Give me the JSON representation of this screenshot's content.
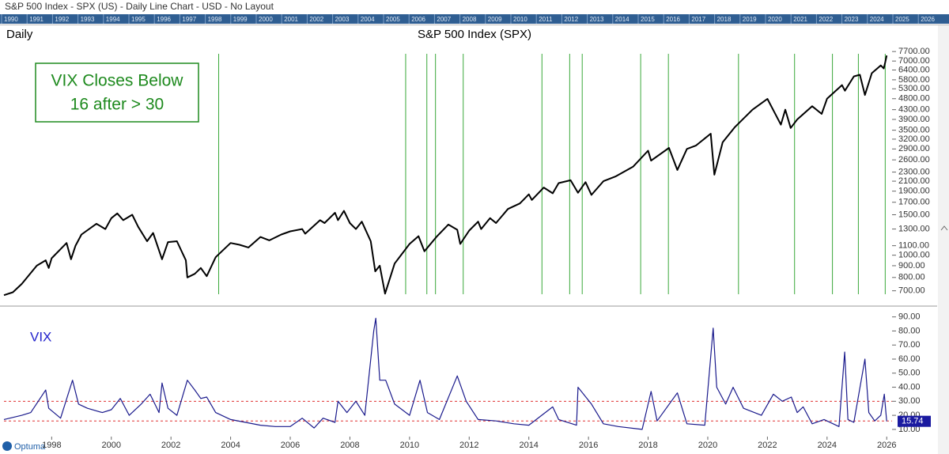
{
  "window_title": "S&P 500 Index - SPX (US) - Daily Line Chart - USD - No Layout",
  "timeline_years": [
    "1990",
    "1991",
    "1992",
    "1993",
    "1994",
    "1995",
    "1996",
    "1997",
    "1998",
    "1999",
    "2000",
    "2001",
    "2002",
    "2003",
    "2004",
    "2005",
    "2006",
    "2007",
    "2008",
    "2009",
    "2010",
    "2011",
    "2012",
    "2013",
    "2014",
    "2015",
    "2016",
    "2017",
    "2018",
    "2019",
    "2020",
    "2021",
    "2022",
    "2023",
    "2024",
    "2025",
    "2026"
  ],
  "footer": {
    "logo": "Optuma"
  },
  "chart_data": [
    {
      "type": "line",
      "title": "S&P 500 Index (SPX)",
      "label": "Daily",
      "log_scale": true,
      "color": "#000000",
      "annotation": [
        "VIX Closes Below",
        "16 after > 30"
      ],
      "annotation_color": "#1e8a1e",
      "signals": [
        2003.6,
        2009.87,
        2010.58,
        2010.87,
        2011.8,
        2014.44,
        2015.37,
        2015.79,
        2017.75,
        2018.68,
        2021.03,
        2022.91,
        2024.18,
        2025.05,
        2025.95
      ],
      "signal_color": "#3aa83a",
      "x": [
        1996.4,
        1996.7,
        1997.0,
        1997.5,
        1997.8,
        1997.9,
        1998.0,
        1998.5,
        1998.65,
        1998.8,
        1999.0,
        1999.5,
        1999.8,
        2000.0,
        2000.2,
        2000.4,
        2000.7,
        2000.9,
        2001.2,
        2001.4,
        2001.7,
        2001.9,
        2002.2,
        2002.5,
        2002.55,
        2002.8,
        2003.0,
        2003.2,
        2003.5,
        2004.0,
        2004.3,
        2004.6,
        2005.0,
        2005.3,
        2005.7,
        2006.0,
        2006.4,
        2006.5,
        2007.0,
        2007.15,
        2007.5,
        2007.6,
        2007.8,
        2008.0,
        2008.2,
        2008.4,
        2008.7,
        2008.85,
        2009.0,
        2009.18,
        2009.5,
        2010.0,
        2010.3,
        2010.5,
        2010.9,
        2011.3,
        2011.6,
        2011.7,
        2012.0,
        2012.3,
        2012.4,
        2012.7,
        2012.9,
        2013.3,
        2013.7,
        2014.0,
        2014.1,
        2014.5,
        2014.8,
        2015.0,
        2015.4,
        2015.65,
        2015.9,
        2016.1,
        2016.5,
        2016.9,
        2017.5,
        2018.0,
        2018.1,
        2018.7,
        2018.98,
        2019.3,
        2019.6,
        2020.1,
        2020.22,
        2020.5,
        2020.9,
        2021.5,
        2022.0,
        2022.45,
        2022.6,
        2022.78,
        2023.0,
        2023.5,
        2023.82,
        2024.0,
        2024.5,
        2024.6,
        2024.9,
        2025.1,
        2025.27,
        2025.5,
        2025.8,
        2025.9,
        2025.95,
        2026.0
      ],
      "values": [
        670,
        690,
        750,
        900,
        950,
        880,
        970,
        1130,
        960,
        1100,
        1230,
        1370,
        1300,
        1450,
        1520,
        1420,
        1500,
        1330,
        1150,
        1250,
        960,
        1140,
        1150,
        950,
        800,
        830,
        880,
        810,
        980,
        1130,
        1110,
        1080,
        1200,
        1160,
        1230,
        1270,
        1300,
        1240,
        1420,
        1380,
        1530,
        1420,
        1560,
        1380,
        1300,
        1400,
        1150,
        850,
        900,
        680,
        920,
        1120,
        1210,
        1040,
        1200,
        1360,
        1290,
        1120,
        1280,
        1400,
        1300,
        1450,
        1380,
        1590,
        1680,
        1840,
        1740,
        1970,
        1860,
        2060,
        2120,
        1870,
        2080,
        1830,
        2100,
        2200,
        2430,
        2850,
        2580,
        2930,
        2350,
        2900,
        3000,
        3380,
        2240,
        3100,
        3600,
        4300,
        4790,
        3700,
        4300,
        3580,
        3900,
        4450,
        4120,
        4800,
        5500,
        5200,
        6000,
        6100,
        4980,
        6200,
        6700,
        6500,
        6900,
        7400
      ],
      "ylim": [
        610,
        8150
      ],
      "yticks": [
        {
          "value": 700,
          "label": "700.00"
        },
        {
          "value": 800,
          "label": "800.00"
        },
        {
          "value": 900,
          "label": "900.00"
        },
        {
          "value": 1000,
          "label": "1000.00"
        },
        {
          "value": 1100,
          "label": "1100.00"
        },
        {
          "value": 1300,
          "label": "1300.00"
        },
        {
          "value": 1500,
          "label": "1500.00"
        },
        {
          "value": 1700,
          "label": "1700.00"
        },
        {
          "value": 1900,
          "label": "1900.00"
        },
        {
          "value": 2100,
          "label": "2100.00"
        },
        {
          "value": 2300,
          "label": "2300.00"
        },
        {
          "value": 2600,
          "label": "2600.00"
        },
        {
          "value": 2900,
          "label": "2900.00"
        },
        {
          "value": 3200,
          "label": "3200.00"
        },
        {
          "value": 3500,
          "label": "3500.00"
        },
        {
          "value": 3900,
          "label": "3900.00"
        },
        {
          "value": 4300,
          "label": "4300.00"
        },
        {
          "value": 4800,
          "label": "4800.00"
        },
        {
          "value": 5300,
          "label": "5300.00"
        },
        {
          "value": 5800,
          "label": "5800.00"
        },
        {
          "value": 6400,
          "label": "6400.00"
        },
        {
          "value": 7000,
          "label": "7000.00"
        },
        {
          "value": 7700,
          "label": "7700.00"
        }
      ],
      "xlim": [
        1996.4,
        2026.1
      ]
    },
    {
      "type": "line",
      "title": "VIX",
      "color": "#1a1a8c",
      "title_color": "#2222cc",
      "reference_lines": [
        30,
        16
      ],
      "reference_color": "#e03030",
      "x": [
        1996.4,
        1997.0,
        1997.3,
        1997.8,
        1997.9,
        1998.3,
        1998.7,
        1998.9,
        1999.2,
        1999.7,
        2000.0,
        2000.3,
        2000.6,
        2001.0,
        2001.3,
        2001.6,
        2001.7,
        2001.9,
        2002.2,
        2002.55,
        2002.8,
        2003.0,
        2003.2,
        2003.5,
        2004.0,
        2004.5,
        2005.0,
        2005.5,
        2006.0,
        2006.4,
        2006.8,
        2007.1,
        2007.5,
        2007.6,
        2007.9,
        2008.2,
        2008.5,
        2008.8,
        2008.87,
        2009.0,
        2009.2,
        2009.5,
        2010.0,
        2010.35,
        2010.6,
        2011.0,
        2011.6,
        2011.9,
        2012.3,
        2012.9,
        2013.5,
        2014.0,
        2014.8,
        2015.0,
        2015.6,
        2015.65,
        2016.1,
        2016.5,
        2017.0,
        2017.8,
        2018.1,
        2018.3,
        2018.98,
        2019.3,
        2019.9,
        2020.18,
        2020.3,
        2020.6,
        2020.85,
        2021.2,
        2021.8,
        2022.2,
        2022.5,
        2022.8,
        2023.0,
        2023.2,
        2023.5,
        2023.9,
        2024.4,
        2024.59,
        2024.7,
        2024.9,
        2025.27,
        2025.4,
        2025.6,
        2025.8,
        2025.92,
        2026.0
      ],
      "values": [
        17,
        20,
        22,
        38,
        25,
        18,
        45,
        28,
        25,
        22,
        24,
        32,
        20,
        28,
        35,
        22,
        43,
        25,
        20,
        45,
        38,
        32,
        33,
        22,
        17,
        15,
        13,
        12,
        12,
        18,
        11,
        18,
        15,
        30,
        22,
        30,
        20,
        80,
        89,
        45,
        45,
        28,
        20,
        45,
        22,
        17,
        48,
        30,
        17,
        16,
        14,
        13,
        26,
        17,
        13,
        40,
        28,
        14,
        12,
        10,
        37,
        16,
        36,
        14,
        13,
        82,
        40,
        28,
        40,
        25,
        20,
        35,
        30,
        33,
        22,
        26,
        14,
        17,
        12,
        65,
        17,
        15,
        60,
        22,
        16,
        20,
        35,
        15.74
      ],
      "ylim": [
        6,
        96
      ],
      "yticks": [
        {
          "value": 10,
          "label": "10.00"
        },
        {
          "value": 20,
          "label": "20.00"
        },
        {
          "value": 30,
          "label": "30.00"
        },
        {
          "value": 40,
          "label": "40.00"
        },
        {
          "value": 50,
          "label": "50.00"
        },
        {
          "value": 60,
          "label": "60.00"
        },
        {
          "value": 70,
          "label": "70.00"
        },
        {
          "value": 80,
          "label": "80.00"
        },
        {
          "value": 90,
          "label": "90.00"
        }
      ],
      "xlim": [
        1996.4,
        2026.1
      ],
      "xticks": [
        1998,
        2000,
        2002,
        2004,
        2006,
        2008,
        2010,
        2012,
        2014,
        2016,
        2018,
        2020,
        2022,
        2024,
        2026
      ]
    }
  ]
}
